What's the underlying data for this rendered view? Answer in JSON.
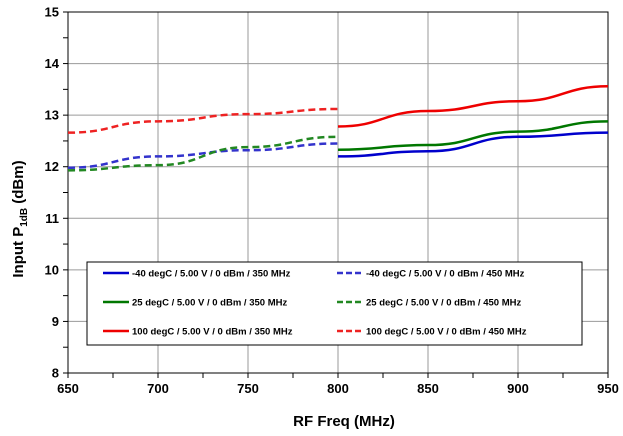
{
  "chart_data": {
    "type": "line",
    "xlabel": "RF  Freq (MHz)",
    "ylabel_main": "Input P",
    "ylabel_sub": "1dB",
    "ylabel_tail": " (dBm)",
    "xlim": [
      650,
      950
    ],
    "ylim": [
      8,
      15
    ],
    "x_ticks": [
      "650",
      "700",
      "750",
      "800",
      "850",
      "900",
      "950"
    ],
    "y_ticks": [
      "8",
      "9",
      "10",
      "11",
      "12",
      "13",
      "14",
      "15"
    ],
    "grid": true,
    "legend_placement": "bottom-center",
    "series": [
      {
        "name": "-40 degC / 5.00 V / 0 dBm / 350 MHz",
        "color": "#0000cc",
        "dash": "solid",
        "x": [
          800,
          850,
          900,
          950
        ],
        "y": [
          12.2,
          12.3,
          12.58,
          12.66
        ]
      },
      {
        "name": "-40 degC / 5.00 V / 0 dBm / 450 MHz",
        "color": "#3333cc",
        "dash": "dashed",
        "x": [
          650,
          700,
          750,
          800
        ],
        "y": [
          11.98,
          12.2,
          12.32,
          12.45
        ]
      },
      {
        "name": "25 degC / 5.00 V / 0 dBm / 350 MHz",
        "color": "#007700",
        "dash": "solid",
        "x": [
          800,
          850,
          900,
          950
        ],
        "y": [
          12.33,
          12.42,
          12.68,
          12.88
        ]
      },
      {
        "name": "25 degC / 5.00 V / 0 dBm / 450 MHz",
        "color": "#228822",
        "dash": "dashed",
        "x": [
          650,
          700,
          750,
          800
        ],
        "y": [
          11.93,
          12.03,
          12.38,
          12.58
        ]
      },
      {
        "name": "100 degC / 5.00 V / 0 dBm / 350 MHz",
        "color": "#ee0000",
        "dash": "solid",
        "x": [
          800,
          850,
          900,
          950
        ],
        "y": [
          12.78,
          13.08,
          13.27,
          13.56
        ]
      },
      {
        "name": "100 degC / 5.00 V / 0 dBm / 450 MHz",
        "color": "#ee2222",
        "dash": "dashed",
        "x": [
          650,
          700,
          750,
          800
        ],
        "y": [
          12.66,
          12.88,
          13.02,
          13.12
        ]
      }
    ]
  }
}
